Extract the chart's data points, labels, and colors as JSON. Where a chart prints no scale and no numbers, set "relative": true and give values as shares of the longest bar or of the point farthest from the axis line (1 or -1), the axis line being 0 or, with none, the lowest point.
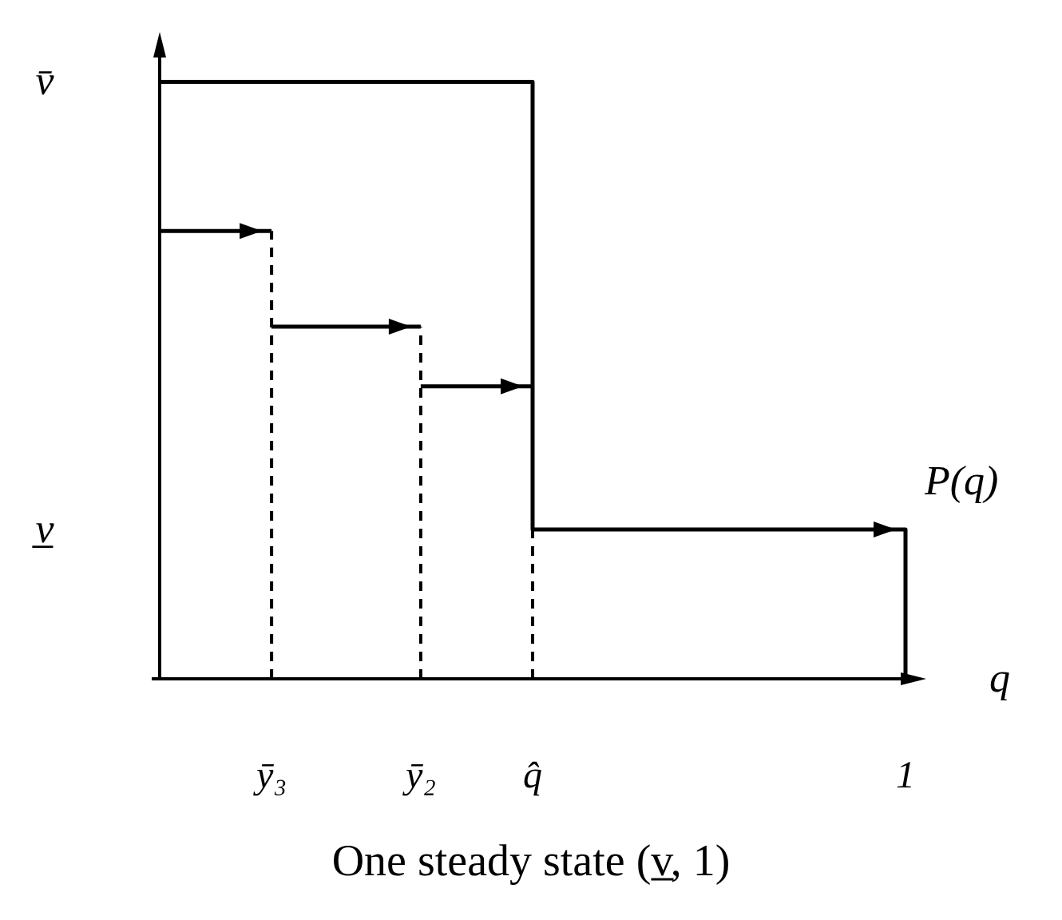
{
  "chart_data": {
    "type": "step",
    "relative": true,
    "xlabel": "q",
    "categories": [
      null,
      null,
      null,
      "ȳ₃",
      null,
      null,
      null,
      "ȳ₂",
      null,
      null,
      "q̂",
      null,
      null,
      null,
      null,
      null,
      null,
      null,
      null,
      null,
      "1"
    ],
    "series": [
      {
        "name": "P(q)",
        "color": "#000000",
        "values": [
          1,
          1,
          1,
          1,
          1,
          1,
          1,
          1,
          1,
          1,
          0.25,
          0.25,
          0.25,
          0.25,
          0.25,
          0.25,
          0.25,
          0.25,
          0.25,
          0.25,
          0
        ]
      },
      {
        "color": "#000000",
        "values": [
          0.75,
          0.75,
          0.75,
          0.59,
          0.59,
          0.59,
          0.59,
          0.49,
          0.49,
          0.49,
          0.49,
          null,
          null,
          null,
          null,
          null,
          null,
          null,
          null,
          null,
          null
        ]
      }
    ],
    "ref_lines": [
      {
        "axis": "x",
        "value": "ȳ₃",
        "line_style": "dashed"
      },
      {
        "axis": "x",
        "value": "ȳ₂",
        "line_style": "dashed"
      },
      {
        "axis": "x",
        "value": "q̂",
        "line_style": "dashed"
      }
    ],
    "annotations": [
      "v̄",
      "v̲",
      "One steady state (v̲, 1)"
    ]
  }
}
